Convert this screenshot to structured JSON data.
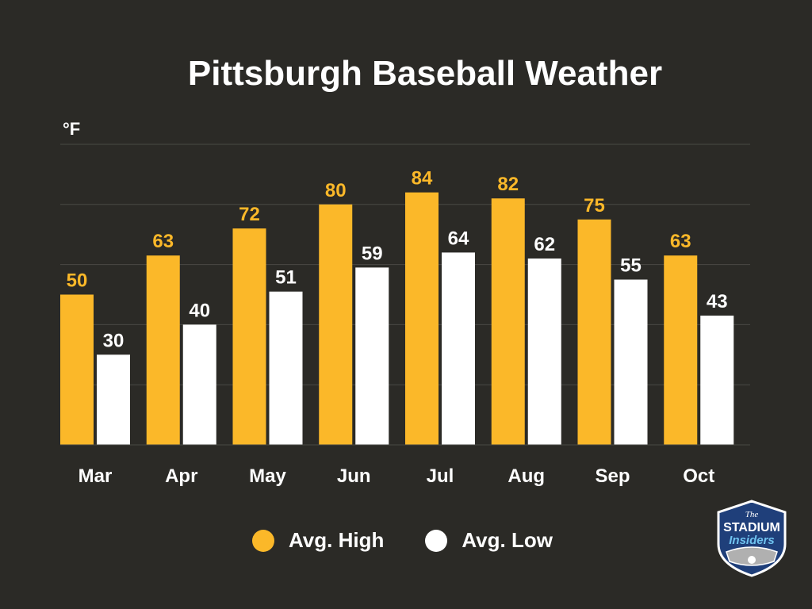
{
  "chart_data": {
    "type": "bar",
    "title": "Pittsburgh Baseball Weather",
    "ylabel": "°F",
    "xlabel": "",
    "categories": [
      "Mar",
      "Apr",
      "May",
      "Jun",
      "Jul",
      "Aug",
      "Sep",
      "Oct"
    ],
    "series": [
      {
        "name": "Avg. High",
        "values": [
          50,
          63,
          72,
          80,
          84,
          82,
          75,
          63
        ],
        "color": "#fbb829"
      },
      {
        "name": "Avg. Low",
        "values": [
          30,
          40,
          51,
          59,
          64,
          62,
          55,
          43
        ],
        "color": "#ffffff"
      }
    ],
    "ylim": [
      0,
      100
    ],
    "grid": true,
    "legend_position": "bottom"
  },
  "colors": {
    "background": "#2b2a26",
    "gridline": "#4a4944",
    "high": "#fbb829",
    "low": "#ffffff",
    "text": "#ffffff"
  },
  "logo": {
    "lines": [
      "The",
      "STADIUM",
      "Insiders"
    ]
  }
}
